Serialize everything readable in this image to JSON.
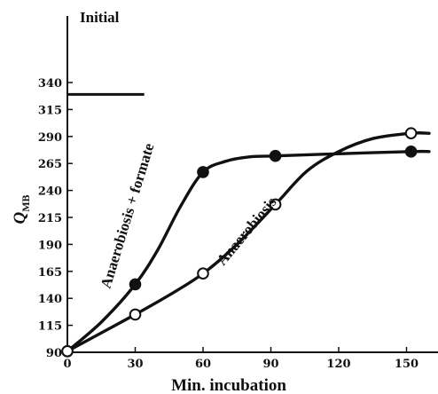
{
  "chart_data": {
    "type": "line",
    "xlabel": "Min. incubation",
    "ylabel": "Q",
    "ylabel_sub": "MB",
    "xlim": [
      0,
      160
    ],
    "ylim": [
      90,
      340
    ],
    "x_ticks": [
      0,
      30,
      60,
      90,
      120,
      150
    ],
    "y_ticks": [
      90,
      115,
      140,
      165,
      190,
      215,
      240,
      265,
      290,
      315,
      340
    ],
    "initial_line": {
      "label": "Initial",
      "y": 329,
      "x_range": [
        0,
        34
      ]
    },
    "series": [
      {
        "name": "Anaerobiosis + formate",
        "marker": "filled-circle",
        "points": [
          [
            0,
            91
          ],
          [
            30,
            153
          ],
          [
            60,
            257
          ],
          [
            92,
            272
          ],
          [
            152,
            276
          ]
        ],
        "curve": [
          [
            0,
            91
          ],
          [
            15,
            118
          ],
          [
            30,
            153
          ],
          [
            40,
            185
          ],
          [
            50,
            225
          ],
          [
            60,
            257
          ],
          [
            70,
            267
          ],
          [
            80,
            271
          ],
          [
            92,
            272
          ],
          [
            120,
            274
          ],
          [
            152,
            276
          ],
          [
            160,
            276
          ]
        ]
      },
      {
        "name": "Anaerobiosis",
        "marker": "open-circle",
        "points": [
          [
            0,
            91
          ],
          [
            30,
            125
          ],
          [
            60,
            163
          ],
          [
            92,
            227
          ],
          [
            152,
            293
          ]
        ],
        "curve": [
          [
            0,
            91
          ],
          [
            15,
            108
          ],
          [
            30,
            125
          ],
          [
            45,
            143
          ],
          [
            60,
            163
          ],
          [
            75,
            190
          ],
          [
            92,
            227
          ],
          [
            106,
            258
          ],
          [
            120,
            276
          ],
          [
            135,
            288
          ],
          [
            152,
            293
          ],
          [
            160,
            293
          ]
        ]
      }
    ]
  }
}
